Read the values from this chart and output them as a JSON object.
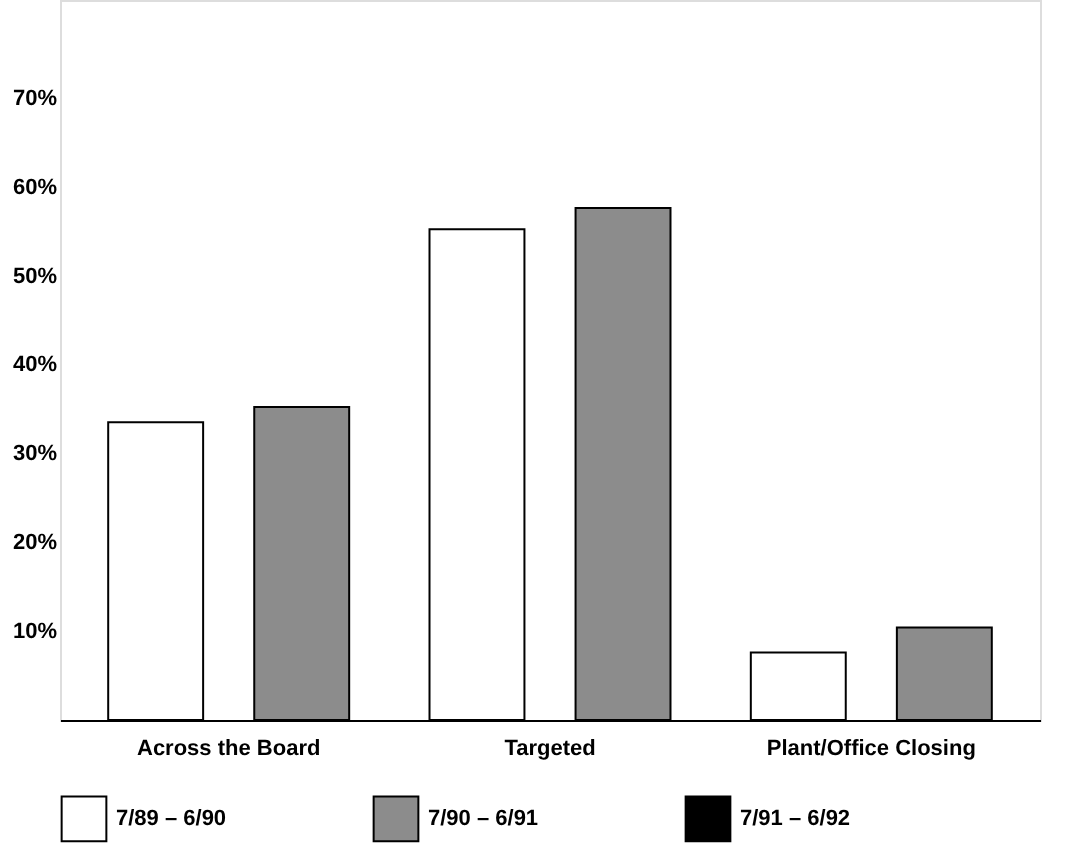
{
  "chart_data": {
    "type": "bar",
    "categories": [
      "Across the Board",
      "Targeted",
      "Plant/Office Closing"
    ],
    "series": [
      {
        "name": "7/89 – 6/90",
        "color": "#ffffff",
        "values": [
          33.5,
          55.2,
          7.6
        ]
      },
      {
        "name": "7/90 – 6/91",
        "color": "#8c8c8c",
        "values": [
          35.2,
          57.6,
          10.4
        ]
      },
      {
        "name": "7/91 – 6/92",
        "color": "#000000",
        "values": [
          null,
          null,
          null
        ]
      }
    ],
    "ylim": [
      0,
      81
    ],
    "yticks": [
      {
        "value": 10,
        "label": "10%"
      },
      {
        "value": 20,
        "label": "20%"
      },
      {
        "value": 30,
        "label": "30%"
      },
      {
        "value": 40,
        "label": "40%"
      },
      {
        "value": 50,
        "label": "50%"
      },
      {
        "value": 60,
        "label": "60%"
      },
      {
        "value": 70,
        "label": "70%"
      }
    ],
    "grid": false,
    "legend": "bottom"
  }
}
